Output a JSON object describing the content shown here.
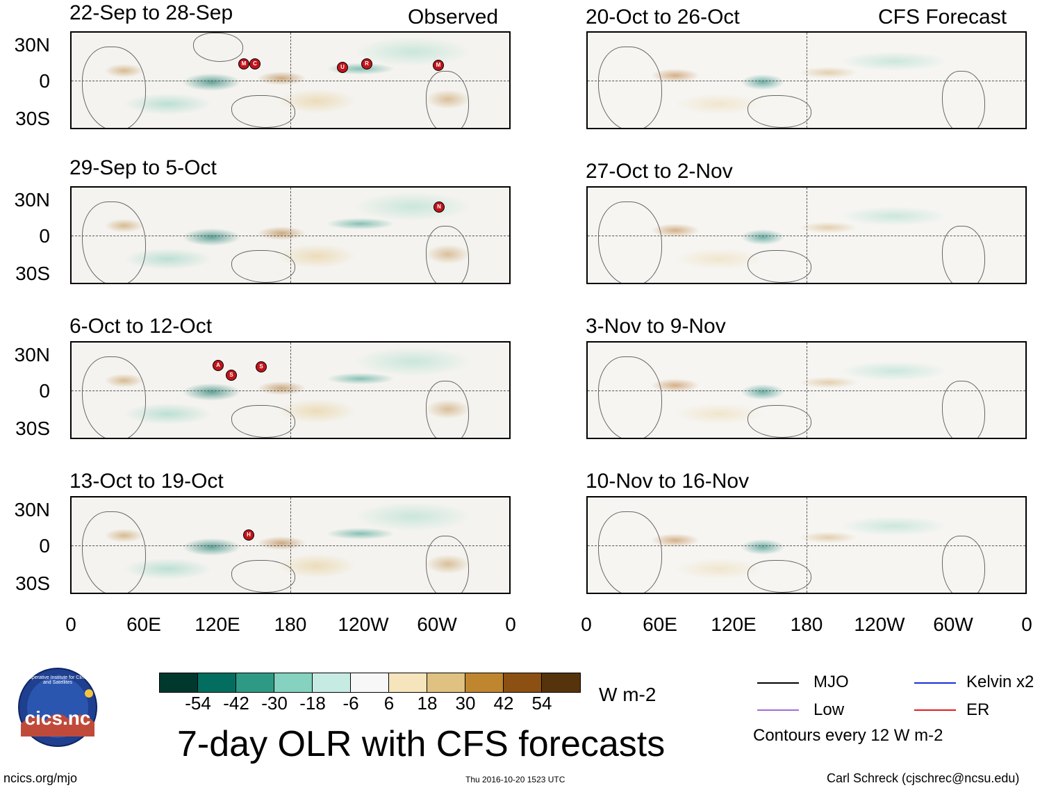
{
  "observed_label": "Observed",
  "forecast_label": "CFS Forecast",
  "lat_labels": [
    "30N",
    "0",
    "30S"
  ],
  "lon_labels": [
    "0",
    "60E",
    "120E",
    "180",
    "120W",
    "60W",
    "0"
  ],
  "observed_periods": [
    "22-Sep to 28-Sep",
    "29-Sep to 5-Oct",
    "6-Oct to 12-Oct",
    "13-Oct to 19-Oct"
  ],
  "forecast_periods": [
    "20-Oct to 26-Oct",
    "27-Oct to 2-Nov",
    "3-Nov to 9-Nov",
    "10-Nov to 16-Nov"
  ],
  "storm_markers": {
    "row1": [
      "M",
      "C",
      "U",
      "R",
      "M"
    ],
    "row2": [
      "N"
    ],
    "row3": [
      "A",
      "S",
      "S"
    ],
    "row4": [
      "H"
    ]
  },
  "colorbar": {
    "ticks": [
      "-54",
      "-42",
      "-30",
      "-18",
      "-6",
      "6",
      "18",
      "30",
      "42",
      "54"
    ],
    "units": "W m-2",
    "colors": [
      "#00382e",
      "#036e5f",
      "#2e9a85",
      "#84d2bf",
      "#c6ebe2",
      "#f7f7f7",
      "#f5e4bc",
      "#dfc182",
      "#c0852f",
      "#8b5012",
      "#55330c"
    ]
  },
  "title": "7-day OLR with CFS forecasts",
  "legend": {
    "mjo": "MJO",
    "kelvin": "Kelvin x2",
    "low": "Low",
    "er": "ER",
    "contours": "Contours every 12 W m-2"
  },
  "legend_colors": {
    "mjo": "#000000",
    "kelvin": "#1a2ed6",
    "low": "#a26bd6",
    "er": "#e31a1c"
  },
  "logo": {
    "text": "cics.nc",
    "ring_text": "Cooperative Institute for Climate and Satellites"
  },
  "footer": {
    "url": "ncics.org/mjo",
    "timestamp": "Thu 2016-10-20 1523 UTC",
    "credit": "Carl Schreck (cjschrec@ncsu.edu)"
  }
}
